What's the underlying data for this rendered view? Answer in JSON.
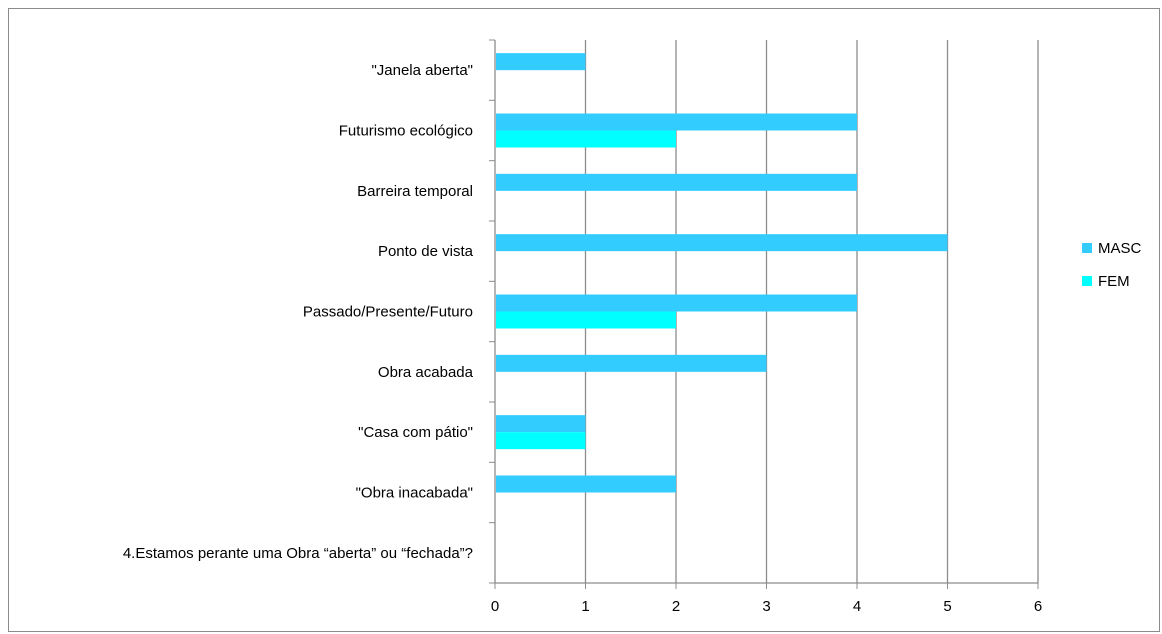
{
  "chart_data": {
    "type": "bar",
    "orientation": "horizontal",
    "categories": [
      "\"Janela aberta\"",
      "Futurismo ecológico",
      "Barreira temporal",
      "Ponto de vista",
      "Passado/Presente/Futuro",
      "Obra acabada",
      "\"Casa com pátio\"",
      "\"Obra inacabada\"",
      "4.Estamos perante uma Obra “aberta” ou “fechada”?"
    ],
    "series": [
      {
        "name": "MASC",
        "color": "#33ccff",
        "values": [
          1,
          4,
          4,
          5,
          4,
          3,
          1,
          2,
          0
        ]
      },
      {
        "name": "FEM",
        "color": "#00ffff",
        "values": [
          0,
          2,
          0,
          0,
          2,
          0,
          1,
          0,
          0
        ]
      }
    ],
    "xlim": [
      0,
      6
    ],
    "xticks": [
      "0",
      "1",
      "2",
      "3",
      "4",
      "5",
      "6"
    ],
    "grid": "vertical",
    "legend": "right"
  }
}
